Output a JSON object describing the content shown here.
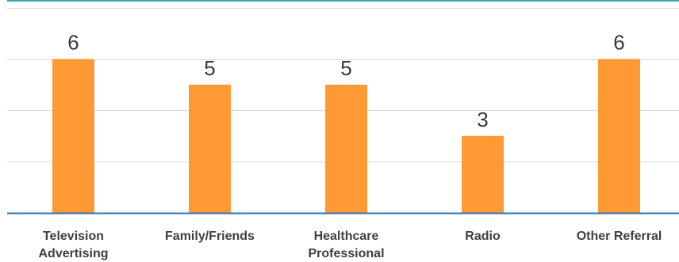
{
  "chart_data": {
    "type": "bar",
    "categories": [
      [
        "Television",
        "Advertising"
      ],
      [
        "Family/Friends"
      ],
      [
        "Healthcare",
        "Professional"
      ],
      [
        "Radio"
      ],
      [
        "Other Referral"
      ]
    ],
    "values": [
      6,
      5,
      5,
      3,
      6
    ],
    "data_labels": [
      "6",
      "5",
      "5",
      "3",
      "6"
    ],
    "ylim": [
      0,
      8
    ],
    "grid": true,
    "legend": "none",
    "colors": {
      "bar": "#ff9933",
      "grid": "#d9d9d9",
      "axis": "#2e75b6",
      "top_rule": "#3aa6b9"
    }
  }
}
